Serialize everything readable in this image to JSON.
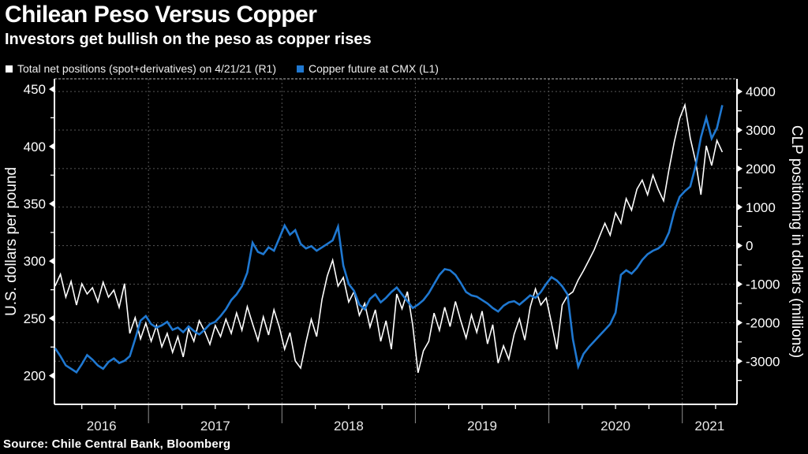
{
  "header": {
    "title": "Chilean Peso Versus Copper",
    "subtitle": "Investors get bullish on the peso as copper rises"
  },
  "legend": [
    {
      "label": "Total net positions (spot+derivatives) on 4/21/21 (R1)",
      "color": "#ffffff"
    },
    {
      "label": "Copper future at CMX (L1)",
      "color": "#1f78d1"
    }
  ],
  "source": "Source: Chile Central Bank, Bloomberg",
  "chart_data": {
    "type": "line",
    "background": "#000000",
    "grid": "dashed horizontal at right-axis majors, dashed vertical at year starts",
    "x_axis": {
      "range": [
        2016.295,
        2021.41
      ],
      "year_gridlines": [
        2017,
        2018,
        2019,
        2020,
        2021
      ],
      "year_labels": [
        {
          "text": "2016",
          "t": 2016.648
        },
        {
          "text": "2017",
          "t": 2017.5
        },
        {
          "text": "2018",
          "t": 2018.5
        },
        {
          "text": "2019",
          "t": 2019.5
        },
        {
          "text": "2020",
          "t": 2020.5
        },
        {
          "text": "2021",
          "t": 2021.205
        }
      ]
    },
    "left_axis": {
      "title": "U.S. dollars per pound",
      "range": [
        175,
        459
      ],
      "major_ticks": [
        200,
        250,
        300,
        350,
        400,
        450
      ],
      "minor_ticks": [
        225,
        275,
        325,
        375,
        425
      ]
    },
    "right_axis": {
      "title": "CLP positioning in dollars (millions)",
      "range": [
        -4120,
        4330
      ],
      "major_ticks": [
        4000,
        3000,
        2000,
        1000,
        0,
        -1000,
        -2000,
        -3000
      ],
      "minor_ticks": [
        3500,
        2500,
        1500,
        500,
        -500,
        -1500,
        -2500,
        -3500
      ]
    },
    "series": [
      {
        "id": "net-positions",
        "name": "Total net positions (spot+derivatives) on 4/21/21",
        "axis": "right",
        "color": "#ffffff",
        "width": 1.6,
        "x_start": 2016.3,
        "x_step": 0.04,
        "values": [
          -1050,
          -745,
          -1337,
          -928,
          -1542,
          -990,
          -1255,
          -1092,
          -1460,
          -949,
          -1337,
          -1153,
          -1603,
          -985,
          -2278,
          -1869,
          -2421,
          -2012,
          -2483,
          -2074,
          -2626,
          -2278,
          -2769,
          -2360,
          -2890,
          -2155,
          -2483,
          -1950,
          -2217,
          -2564,
          -2074,
          -2360,
          -1910,
          -2278,
          -1746,
          -2196,
          -1582,
          -2032,
          -2462,
          -1848,
          -2319,
          -1664,
          -2115,
          -2687,
          -2258,
          -2993,
          -3178,
          -2505,
          -1910,
          -2360,
          -1394,
          -786,
          -376,
          -1050,
          -825,
          -1465,
          -1195,
          -1810,
          -1500,
          -2115,
          -1665,
          -2485,
          -1950,
          -2690,
          -1255,
          -1640,
          -1195,
          -2075,
          -3300,
          -2730,
          -2485,
          -1750,
          -2200,
          -1600,
          -2100,
          -1450,
          -1950,
          -2400,
          -1800,
          -2250,
          -1700,
          -2550,
          -2050,
          -3050,
          -2600,
          -2950,
          -2300,
          -1900,
          -2450,
          -1600,
          -1125,
          -1540,
          -1360,
          -2010,
          -2690,
          -1540,
          -1300,
          -1200,
          -890,
          -650,
          -380,
          -105,
          240,
          580,
          270,
          850,
          580,
          1220,
          920,
          1465,
          1700,
          1320,
          1830,
          1460,
          1160,
          1975,
          2690,
          3300,
          3650,
          2790,
          2180,
          1320,
          2590,
          2080,
          2730,
          2430
        ]
      },
      {
        "id": "copper-future",
        "name": "Copper future at CMX",
        "axis": "left",
        "color": "#1f78d1",
        "width": 2.6,
        "x_start": 2016.3,
        "x_step": 0.04,
        "values": [
          224,
          217,
          209,
          206,
          203,
          210,
          218,
          214,
          209,
          206,
          212,
          215,
          211,
          213,
          217,
          232,
          248,
          252,
          245,
          242,
          244,
          247,
          240,
          242,
          238,
          243,
          239,
          236,
          240,
          245,
          247,
          252,
          258,
          266,
          271,
          278,
          290,
          316,
          308,
          306,
          312,
          309,
          320,
          331,
          323,
          327,
          315,
          311,
          313,
          309,
          312,
          315,
          318,
          330,
          296,
          280,
          274,
          262,
          258,
          267,
          271,
          264,
          268,
          273,
          277,
          271,
          265,
          259,
          262,
          266,
          272,
          280,
          288,
          293,
          292,
          288,
          281,
          273,
          270,
          269,
          266,
          263,
          259,
          256,
          261,
          264,
          265,
          262,
          266,
          270,
          268,
          273,
          280,
          286,
          283,
          278,
          271,
          232,
          208,
          219,
          225,
          230,
          235,
          240,
          245,
          255,
          288,
          292,
          289,
          294,
          301,
          306,
          309,
          311,
          315,
          325,
          343,
          356,
          361,
          365,
          383,
          408,
          425,
          407,
          416,
          436
        ]
      }
    ]
  }
}
